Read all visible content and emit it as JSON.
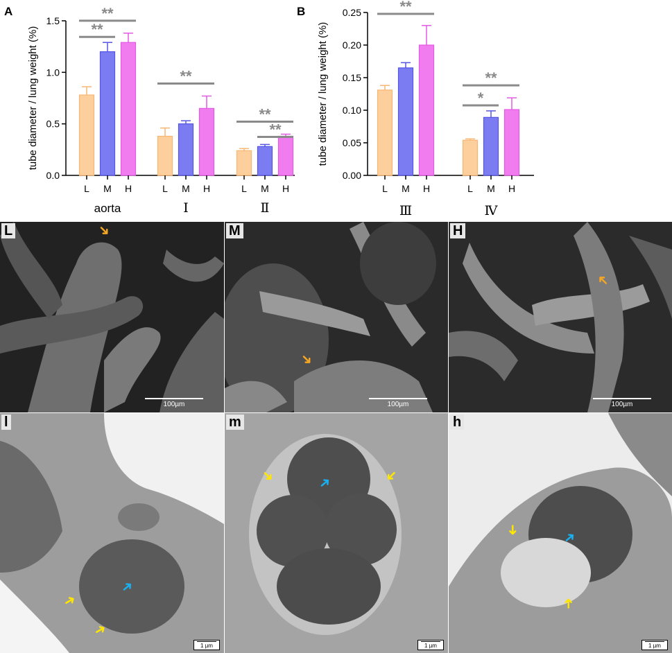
{
  "chart_data": [
    {
      "type": "bar",
      "panel": "A",
      "ylabel": "tube diameter / lung weight (%)",
      "ylim": [
        0,
        1.5
      ],
      "yticks": [
        "0.0",
        "0.5",
        "1.0",
        "1.5"
      ],
      "groups": [
        {
          "name": "aorta",
          "categories": [
            "L",
            "M",
            "H"
          ],
          "values": [
            0.78,
            1.2,
            1.29
          ],
          "errors": [
            0.08,
            0.09,
            0.09
          ]
        },
        {
          "name": "Ⅰ",
          "categories": [
            "L",
            "M",
            "H"
          ],
          "values": [
            0.38,
            0.5,
            0.65
          ],
          "errors": [
            0.08,
            0.03,
            0.12
          ]
        },
        {
          "name": "Ⅱ",
          "categories": [
            "L",
            "M",
            "H"
          ],
          "values": [
            0.24,
            0.28,
            0.38
          ],
          "errors": [
            0.02,
            0.02,
            0.02
          ]
        }
      ],
      "significance": [
        {
          "text": "**",
          "group": 0,
          "from": 0,
          "to": 2
        },
        {
          "text": "**",
          "group": 0,
          "from": 0,
          "to": 1
        },
        {
          "text": "**",
          "group": 1,
          "from": 0,
          "to": 2
        },
        {
          "text": "**",
          "group": 2,
          "from": 0,
          "to": 2
        },
        {
          "text": "**",
          "group": 2,
          "from": 1,
          "to": 2
        }
      ]
    },
    {
      "type": "bar",
      "panel": "B",
      "ylabel": "tube diameter / lung weight (%)",
      "ylim": [
        0,
        0.25
      ],
      "yticks": [
        "0.00",
        "0.05",
        "0.10",
        "0.15",
        "0.20",
        "0.25"
      ],
      "groups": [
        {
          "name": "Ⅲ",
          "categories": [
            "L",
            "M",
            "H"
          ],
          "values": [
            0.131,
            0.165,
            0.2
          ],
          "errors": [
            0.007,
            0.008,
            0.03
          ]
        },
        {
          "name": "Ⅳ",
          "categories": [
            "L",
            "M",
            "H"
          ],
          "values": [
            0.054,
            0.089,
            0.101
          ],
          "errors": [
            0.002,
            0.01,
            0.018
          ]
        }
      ],
      "significance": [
        {
          "text": "**",
          "group": 0,
          "from": 0,
          "to": 2
        },
        {
          "text": "**",
          "group": 1,
          "from": 0,
          "to": 2
        },
        {
          "text": "*",
          "group": 1,
          "from": 0,
          "to": 1
        }
      ]
    }
  ],
  "colors": {
    "L": {
      "fill": "#fccf9c",
      "stroke": "#f8b673"
    },
    "M": {
      "fill": "#7b7bf2",
      "stroke": "#5656e6"
    },
    "H": {
      "fill": "#f07cf0",
      "stroke": "#e35ae3"
    },
    "significance": "#8a8a8a"
  },
  "micrographs": {
    "sem": [
      {
        "label": "L",
        "scale": "100µm"
      },
      {
        "label": "M",
        "scale": "100µm"
      },
      {
        "label": "H",
        "scale": "100µm"
      }
    ],
    "tem": [
      {
        "label": "l",
        "scale": "1 µm"
      },
      {
        "label": "m",
        "scale": "1 µm"
      },
      {
        "label": "h",
        "scale": "1 µm"
      }
    ]
  }
}
